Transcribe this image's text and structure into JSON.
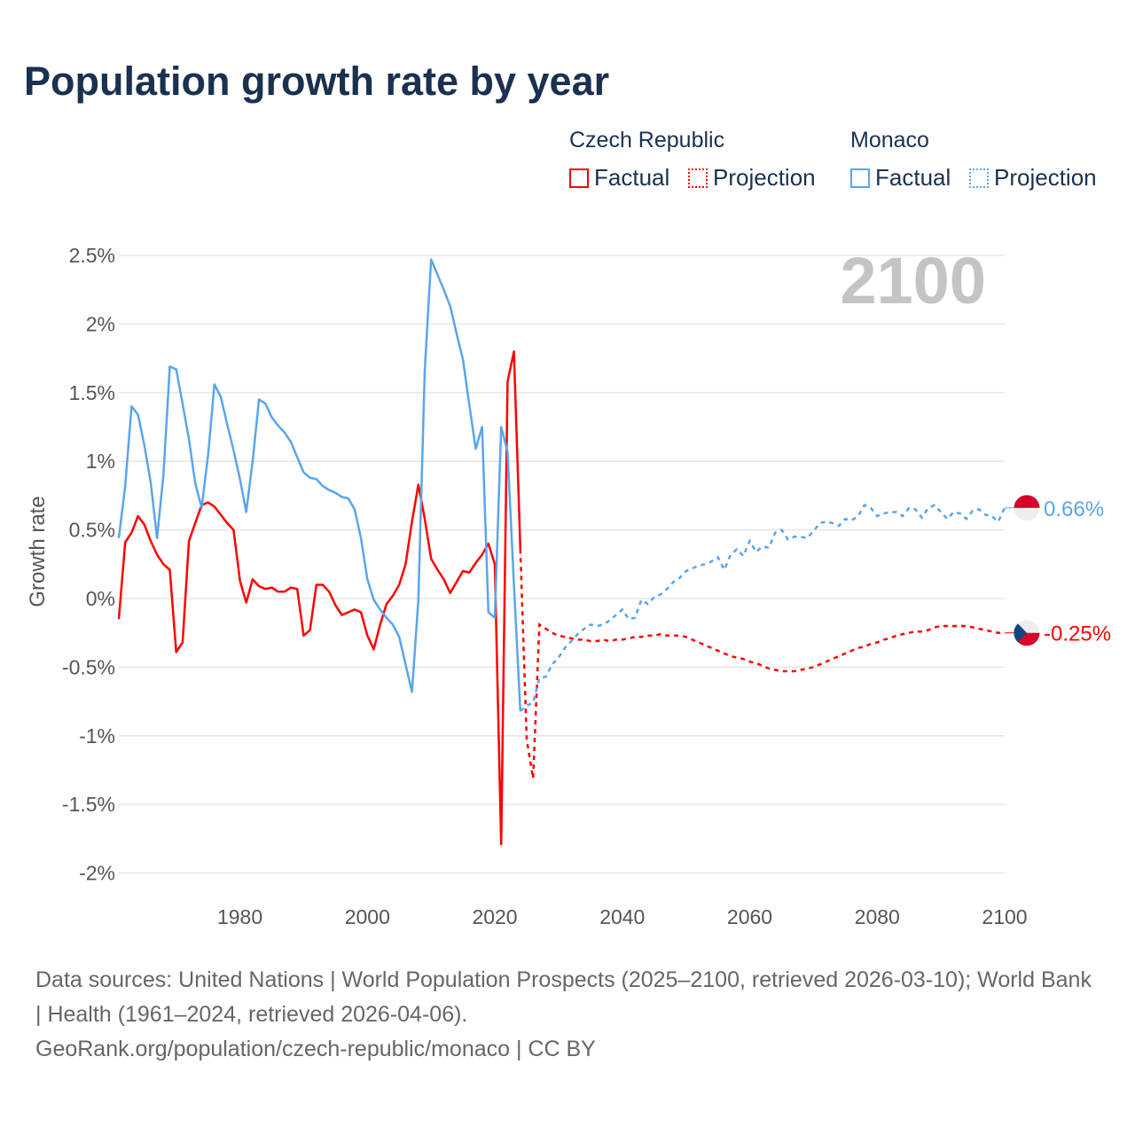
{
  "title": "Population growth rate by year",
  "legend": {
    "groups": [
      {
        "country": "Czech Republic",
        "factual": "Factual",
        "projection": "Projection",
        "color": "#ff0000"
      },
      {
        "country": "Monaco",
        "factual": "Factual",
        "projection": "Projection",
        "color": "#5aa5ea"
      }
    ]
  },
  "year_watermark": "2100",
  "footer": {
    "sources": "Data sources: United Nations | World Population Prospects (2025–2100, retrieved 2026-03-10); World Bank | Health (1961–2024, retrieved 2026-04-06).",
    "credit": "GeoRank.org/population/czech-republic/monaco | CC BY"
  },
  "chart_data": {
    "type": "line",
    "title": "Population growth rate by year",
    "xlabel": "",
    "ylabel": "Growth rate",
    "xlim": [
      1961,
      2100
    ],
    "ylim": [
      -2.2,
      2.6
    ],
    "x_ticks": [
      1980,
      2000,
      2020,
      2040,
      2060,
      2080,
      2100
    ],
    "x_tick_labels": [
      "1980",
      "2000",
      "2020",
      "2040",
      "2060",
      "2080",
      "2100"
    ],
    "y_ticks": [
      -2,
      -1.5,
      -1,
      -0.5,
      0,
      0.5,
      1,
      1.5,
      2,
      2.5
    ],
    "y_tick_labels": [
      "-2%",
      "-1.5%",
      "-1%",
      "-0.5%",
      "0%",
      "0.5%",
      "1%",
      "1.5%",
      "2%",
      "2.5%"
    ],
    "grid": true,
    "legend_position": "top-right",
    "series": [
      {
        "name": "Czech Republic",
        "color": "#ff0000",
        "flag": "czech-flag",
        "end_label": "-0.25%",
        "factual": {
          "start_year": 1961,
          "values": [
            -0.15,
            0.41,
            0.48,
            0.6,
            0.54,
            0.42,
            0.32,
            0.25,
            0.21,
            -0.39,
            -0.32,
            0.42,
            0.55,
            0.68,
            0.7,
            0.67,
            0.61,
            0.55,
            0.5,
            0.13,
            -0.03,
            0.14,
            0.09,
            0.07,
            0.08,
            0.05,
            0.05,
            0.08,
            0.07,
            -0.27,
            -0.23,
            0.1,
            0.1,
            0.05,
            -0.05,
            -0.12,
            -0.1,
            -0.08,
            -0.1,
            -0.27,
            -0.37,
            -0.19,
            -0.04,
            0.02,
            0.1,
            0.25,
            0.56,
            0.83,
            0.58,
            0.29,
            0.21,
            0.14,
            0.04,
            0.12,
            0.2,
            0.19,
            0.26,
            0.32,
            0.4,
            0.25,
            -1.79,
            1.58,
            1.8,
            0.36
          ]
        },
        "projection": {
          "start_year": 2024,
          "values": [
            0.36,
            -1.03,
            -1.31,
            -0.19,
            -0.22,
            -0.25,
            -0.27,
            -0.28,
            -0.29,
            -0.3,
            -0.3,
            -0.31,
            -0.31,
            -0.3,
            -0.31,
            -0.3,
            -0.3,
            -0.29,
            -0.28,
            -0.28,
            -0.27,
            -0.27,
            -0.26,
            -0.27,
            -0.27,
            -0.27,
            -0.28,
            -0.3,
            -0.32,
            -0.34,
            -0.36,
            -0.38,
            -0.4,
            -0.42,
            -0.43,
            -0.44,
            -0.46,
            -0.47,
            -0.49,
            -0.51,
            -0.52,
            -0.53,
            -0.53,
            -0.53,
            -0.52,
            -0.51,
            -0.5,
            -0.48,
            -0.46,
            -0.44,
            -0.42,
            -0.4,
            -0.38,
            -0.36,
            -0.35,
            -0.33,
            -0.32,
            -0.3,
            -0.29,
            -0.27,
            -0.26,
            -0.25,
            -0.24,
            -0.24,
            -0.23,
            -0.21,
            -0.2,
            -0.2,
            -0.2,
            -0.2,
            -0.2,
            -0.21,
            -0.22,
            -0.23,
            -0.24,
            -0.25,
            -0.25
          ]
        }
      },
      {
        "name": "Monaco",
        "color": "#5aa5ea",
        "flag": "monaco-flag",
        "end_label": "0.66%",
        "factual": {
          "start_year": 1961,
          "values": [
            0.44,
            0.82,
            1.4,
            1.34,
            1.12,
            0.85,
            0.44,
            0.9,
            1.69,
            1.67,
            1.42,
            1.16,
            0.84,
            0.66,
            1.04,
            1.56,
            1.47,
            1.27,
            1.08,
            0.87,
            0.63,
            1.0,
            1.45,
            1.42,
            1.32,
            1.26,
            1.21,
            1.14,
            1.03,
            0.92,
            0.88,
            0.87,
            0.82,
            0.79,
            0.77,
            0.74,
            0.73,
            0.65,
            0.44,
            0.14,
            -0.01,
            -0.08,
            -0.14,
            -0.19,
            -0.28,
            -0.48,
            -0.68,
            -0.01,
            1.66,
            2.47,
            2.36,
            2.25,
            2.13,
            1.93,
            1.74,
            1.41,
            1.09,
            1.25,
            -0.1,
            -0.14,
            1.25,
            1.07,
            0.1,
            -0.82
          ]
        },
        "projection": {
          "start_year": 2024,
          "values": [
            -0.82,
            -0.78,
            -0.76,
            -0.58,
            -0.57,
            -0.48,
            -0.43,
            -0.36,
            -0.31,
            -0.26,
            -0.22,
            -0.19,
            -0.2,
            -0.19,
            -0.16,
            -0.12,
            -0.08,
            -0.15,
            -0.14,
            -0.01,
            -0.04,
            0.01,
            0.03,
            0.07,
            0.12,
            0.15,
            0.2,
            0.22,
            0.24,
            0.25,
            0.27,
            0.3,
            0.21,
            0.32,
            0.36,
            0.31,
            0.42,
            0.34,
            0.38,
            0.37,
            0.48,
            0.5,
            0.43,
            0.45,
            0.45,
            0.44,
            0.49,
            0.55,
            0.56,
            0.55,
            0.53,
            0.58,
            0.57,
            0.6,
            0.68,
            0.66,
            0.6,
            0.62,
            0.63,
            0.63,
            0.6,
            0.66,
            0.65,
            0.59,
            0.66,
            0.68,
            0.63,
            0.58,
            0.63,
            0.62,
            0.58,
            0.64,
            0.65,
            0.61,
            0.6,
            0.56,
            0.66
          ]
        }
      }
    ]
  }
}
